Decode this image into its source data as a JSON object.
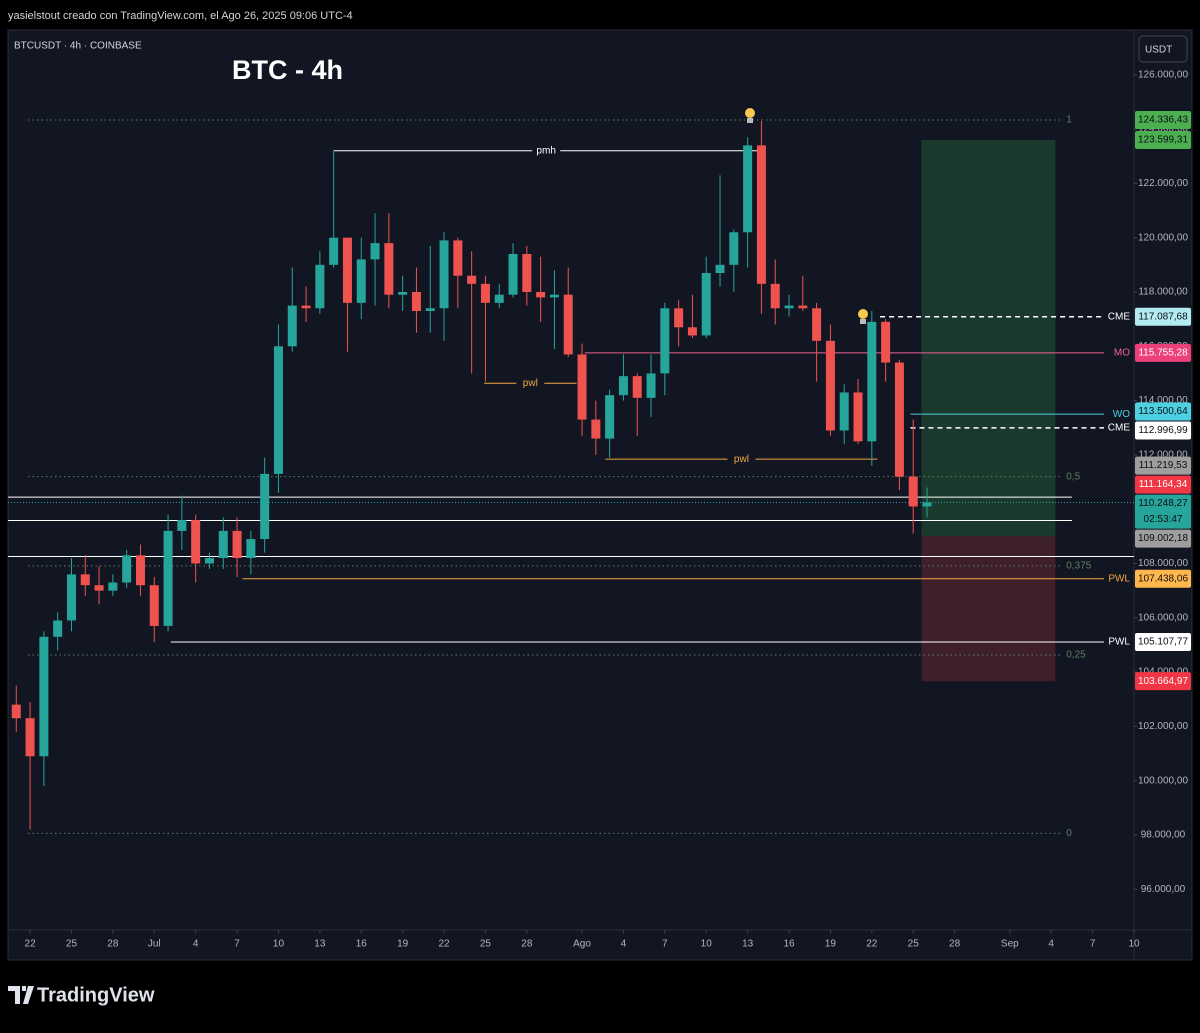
{
  "header": {
    "text": "yasielstout creado con TradingView.com, el Ago 26, 2025 09:06 UTC-4"
  },
  "footer": {
    "brand": "TradingView"
  },
  "chart_data": {
    "type": "candlestick",
    "title": "BTC - 4h",
    "symbol": "BTCUSDT · 4h · COINBASE",
    "currency": "USDT",
    "colors": {
      "up": "#26a69a",
      "down": "#ef5350"
    },
    "grid": false,
    "categories": [
      null,
      null,
      null,
      null,
      null,
      null,
      null,
      null,
      null,
      null,
      null,
      null,
      null,
      null,
      null,
      null,
      null,
      null,
      null,
      null,
      null,
      null,
      null,
      null,
      null,
      null,
      null,
      null,
      null,
      null,
      null,
      null,
      null,
      null,
      null,
      null,
      null,
      null,
      null,
      null,
      null,
      null,
      null,
      null,
      null,
      null,
      null,
      null,
      null,
      null,
      null,
      null,
      null,
      null,
      null,
      null,
      null,
      null,
      null,
      null,
      null,
      null,
      null,
      null,
      null,
      null,
      null
    ],
    "open": [
      102800,
      102300,
      100900,
      105300,
      105900,
      107600,
      107200,
      107000,
      107300,
      108300,
      107200,
      105700,
      109200,
      109600,
      108000,
      108200,
      109200,
      108200,
      108900,
      111300,
      116000,
      117500,
      117400,
      119000,
      120000,
      117600,
      119200,
      119800,
      117900,
      118000,
      117300,
      117400,
      119900,
      118600,
      118300,
      117600,
      117900,
      119400,
      118000,
      117800,
      117900,
      115700,
      113300,
      112600,
      114200,
      114900,
      114100,
      115000,
      117400,
      116700,
      116400,
      118700,
      119000,
      120200,
      123400,
      118300,
      117400,
      117500,
      117400,
      116200,
      112900,
      114300,
      112500,
      116900,
      115400,
      111200,
      110100
    ],
    "high": [
      103500,
      102900,
      105500,
      106200,
      108200,
      108300,
      107900,
      107600,
      108500,
      108700,
      107500,
      109800,
      110500,
      109800,
      108400,
      109700,
      109700,
      109200,
      111900,
      116800,
      118900,
      118200,
      119500,
      123200,
      120000,
      120000,
      120900,
      120900,
      118600,
      118900,
      119700,
      120200,
      120000,
      119500,
      118600,
      118300,
      119800,
      119700,
      119300,
      118800,
      118900,
      116100,
      114000,
      114400,
      115700,
      115000,
      115700,
      117600,
      117700,
      117900,
      119300,
      122300,
      120300,
      123700,
      124300,
      119200,
      117900,
      118600,
      117600,
      116800,
      114600,
      114800,
      117300,
      117000,
      115500,
      113300,
      110800
    ],
    "low": [
      101800,
      98200,
      99800,
      104800,
      105500,
      106800,
      106500,
      106800,
      107100,
      106800,
      105100,
      105500,
      108500,
      107300,
      107800,
      107800,
      107500,
      107600,
      108400,
      110600,
      115800,
      116900,
      117200,
      118900,
      115800,
      117000,
      117500,
      117400,
      117300,
      116500,
      116500,
      116200,
      117400,
      115000,
      114700,
      117400,
      117800,
      117500,
      116900,
      115900,
      115600,
      112700,
      112000,
      111900,
      114000,
      112700,
      113400,
      114200,
      116000,
      116300,
      116300,
      118200,
      118000,
      118900,
      117200,
      116800,
      117100,
      117300,
      114700,
      112700,
      112400,
      112400,
      111600,
      114700,
      110700,
      109100,
      109700
    ],
    "close": [
      102300,
      100900,
      105300,
      105900,
      107600,
      107200,
      107000,
      107300,
      108300,
      107200,
      105700,
      109200,
      109600,
      108000,
      108200,
      109200,
      108200,
      108900,
      111300,
      116000,
      117500,
      117400,
      119000,
      120000,
      117600,
      119200,
      119800,
      117900,
      118000,
      117300,
      117400,
      119900,
      118600,
      118300,
      117600,
      117900,
      119400,
      118000,
      117800,
      117900,
      115700,
      113300,
      112600,
      114200,
      114900,
      114100,
      115000,
      117400,
      116700,
      116400,
      118700,
      119000,
      120200,
      123400,
      118300,
      117400,
      117500,
      117400,
      116200,
      112900,
      114300,
      112500,
      116900,
      115400,
      111200,
      110100,
      110250
    ],
    "xlim": [
      -0.6,
      81
    ],
    "xticks": [
      {
        "value": 1,
        "label": "22"
      },
      {
        "value": 4,
        "label": "25"
      },
      {
        "value": 7,
        "label": "28"
      },
      {
        "value": 10,
        "label": "Jul"
      },
      {
        "value": 13,
        "label": "4"
      },
      {
        "value": 16,
        "label": "7"
      },
      {
        "value": 19,
        "label": "10"
      },
      {
        "value": 22,
        "label": "13"
      },
      {
        "value": 25,
        "label": "16"
      },
      {
        "value": 28,
        "label": "19"
      },
      {
        "value": 31,
        "label": "22"
      },
      {
        "value": 34,
        "label": "25"
      },
      {
        "value": 37,
        "label": "28"
      },
      {
        "value": 41,
        "label": "Ago"
      },
      {
        "value": 44,
        "label": "4"
      },
      {
        "value": 47,
        "label": "7"
      },
      {
        "value": 50,
        "label": "10"
      },
      {
        "value": 53,
        "label": "13"
      },
      {
        "value": 56,
        "label": "16"
      },
      {
        "value": 59,
        "label": "19"
      },
      {
        "value": 62,
        "label": "22"
      },
      {
        "value": 65,
        "label": "25"
      },
      {
        "value": 68,
        "label": "28"
      },
      {
        "value": 72,
        "label": "Sep"
      },
      {
        "value": 75,
        "label": "4"
      },
      {
        "value": 78,
        "label": "7"
      },
      {
        "value": 81,
        "label": "10"
      }
    ],
    "ylim": [
      94500,
      127650
    ],
    "yticks": [
      {
        "value": 96000,
        "label": "96.000,00"
      },
      {
        "value": 98000,
        "label": "98.000,00"
      },
      {
        "value": 100000,
        "label": "100.000,00"
      },
      {
        "value": 102000,
        "label": "102.000,00"
      },
      {
        "value": 104000,
        "label": "104.000,00"
      },
      {
        "value": 106000,
        "label": "106.000,00"
      },
      {
        "value": 108000,
        "label": "108.000,00"
      },
      {
        "value": 110000,
        "label": "110.000,00"
      },
      {
        "value": 112000,
        "label": "112.000,00"
      },
      {
        "value": 114000,
        "label": "114.000,00"
      },
      {
        "value": 116000,
        "label": "116.000,00"
      },
      {
        "value": 118000,
        "label": "118.000,00"
      },
      {
        "value": 120000,
        "label": "120.000,00"
      },
      {
        "value": 122000,
        "label": "122.000,00"
      },
      {
        "value": 124000,
        "label": "124.000,00"
      },
      {
        "value": 126000,
        "label": "126.000,00"
      }
    ],
    "fib": {
      "high": 124336.43,
      "low": 98060,
      "color": "#5d7f63",
      "levels": [
        {
          "value": 1,
          "label": "1"
        },
        {
          "value": 0.5,
          "label": "0,5"
        },
        {
          "value": 0.375,
          "label": "0,375"
        },
        {
          "value": 0.25,
          "label": "0,25"
        },
        {
          "value": 0,
          "label": "0"
        }
      ],
      "start": 0.85,
      "end": 75.8
    },
    "levels": [
      {
        "label": "pmh",
        "value": 123204,
        "color": "#ffffff",
        "style": "solid",
        "start": 23,
        "end": 53.8,
        "label_at": "center"
      },
      {
        "label": "pwl",
        "value": 114638,
        "color": "#f5a742",
        "style": "solid",
        "start": 33.9,
        "end": 40.6,
        "label_at": "center"
      },
      {
        "label": "pwl",
        "value": 111844,
        "color": "#f5a742",
        "style": "solid",
        "start": 42.7,
        "end": 62.4,
        "label_at": "center"
      },
      {
        "label": "CME",
        "value": 117087.68,
        "color": "#ffffff",
        "style": "dashed",
        "start": 62.6,
        "end": 81,
        "label_at": "right"
      },
      {
        "label": "MO",
        "value": 115755.28,
        "color": "#f06292",
        "style": "solid",
        "start": 41.2,
        "end": 81,
        "label_at": "right"
      },
      {
        "label": "WO",
        "value": 113500.64,
        "color": "#4dd0e1",
        "style": "solid",
        "start": 64.8,
        "end": 81,
        "label_at": "right"
      },
      {
        "label": "CME",
        "value": 112996.99,
        "color": "#ffffff",
        "style": "dashed",
        "start": 64.8,
        "end": 81,
        "label_at": "right"
      },
      {
        "label": "PWL",
        "value": 107438.06,
        "color": "#f5a742",
        "style": "solid",
        "start": 16.4,
        "end": 81,
        "label_at": "right"
      },
      {
        "label": "PWL",
        "value": 105107.77,
        "color": "#ffffff",
        "style": "solid",
        "start": 11.2,
        "end": 81,
        "label_at": "right"
      }
    ],
    "lines": [
      {
        "value": 110444,
        "color": "#ffffff",
        "start": -0.6,
        "end": 76.5
      },
      {
        "value": 109584,
        "color": "#ffffff",
        "start": -0.6,
        "end": 76.5
      },
      {
        "value": 108258,
        "color": "#ffffff",
        "start": -0.6,
        "end": 81
      }
    ],
    "last_price_line": {
      "value": 110248.27,
      "color": "#26a69a"
    },
    "position": {
      "entry": 109002.18,
      "target": 123599.31,
      "stop": 103664.97,
      "start": 65.6,
      "end": 75.3,
      "profit_color": "#1b3a2e",
      "loss_color": "#3f1f29"
    },
    "price_labels": [
      {
        "value": 124336.43,
        "label": "124.336,43",
        "bg": "#4caf50",
        "fg": "#0b0e14"
      },
      {
        "value": 123599.31,
        "label": "123.599,31",
        "bg": "#4caf50",
        "fg": "#0b0e14"
      },
      {
        "value": 117087.68,
        "label": "117.087,68",
        "bg": "#b2ebf2",
        "fg": "#0b0e14"
      },
      {
        "value": 115755.28,
        "label": "115.755,28",
        "bg": "#ec407a",
        "fg": "#ffffff"
      },
      {
        "value": 113500.64,
        "label": "113.500,64",
        "bg": "#4dd0e1",
        "fg": "#0b0e14"
      },
      {
        "value": 112996.99,
        "label": "112.996,99",
        "bg": "#ffffff",
        "fg": "#0b0e14"
      },
      {
        "value": 111219.53,
        "label": "111.219,53",
        "bg": "#9e9e9e",
        "fg": "#0b0e14"
      },
      {
        "value": 111164.34,
        "label": "111.164,34",
        "bg": "#f23645",
        "fg": "#ffffff"
      },
      {
        "value": 110248.27,
        "label": "110.248,27",
        "bg": "#26a69a",
        "fg": "#0b0e14",
        "countdown": "02:53:47"
      },
      {
        "value": 109002.18,
        "label": "109.002,18",
        "bg": "#9e9e9e",
        "fg": "#0b0e14"
      },
      {
        "value": 107438.06,
        "label": "107.438,06",
        "bg": "#ffb74d",
        "fg": "#0b0e14"
      },
      {
        "value": 105107.77,
        "label": "105.107,77",
        "bg": "#ffffff",
        "fg": "#0b0e14"
      },
      {
        "value": 103664.97,
        "label": "103.664,97",
        "bg": "#f23645",
        "fg": "#ffffff"
      }
    ]
  }
}
